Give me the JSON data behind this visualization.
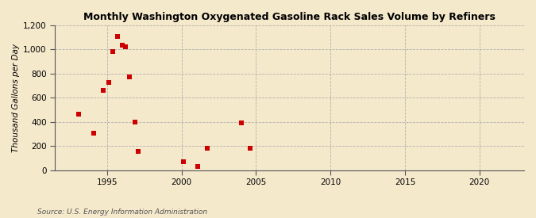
{
  "title": "Monthly Washington Oxygenated Gasoline Rack Sales Volume by Refiners",
  "ylabel": "Thousand Gallons per Day",
  "source": "Source: U.S. Energy Information Administration",
  "background_color": "#f5e9cc",
  "plot_background_color": "#f5e9cc",
  "marker_color": "#cc0000",
  "marker": "s",
  "marker_size": 5,
  "xlim": [
    1991.5,
    2023
  ],
  "ylim": [
    0,
    1200
  ],
  "yticks": [
    0,
    200,
    400,
    600,
    800,
    1000,
    1200
  ],
  "xticks": [
    1995,
    2000,
    2005,
    2010,
    2015,
    2020
  ],
  "data_x": [
    1993.1,
    1994.1,
    1994.75,
    1995.1,
    1995.4,
    1995.7,
    1996.0,
    1996.25,
    1996.5,
    1996.85,
    1997.1,
    2000.1,
    2001.1,
    2001.75,
    2004.0,
    2004.6
  ],
  "data_y": [
    465,
    305,
    660,
    730,
    985,
    1110,
    1035,
    1020,
    770,
    400,
    155,
    70,
    30,
    180,
    390,
    180
  ]
}
